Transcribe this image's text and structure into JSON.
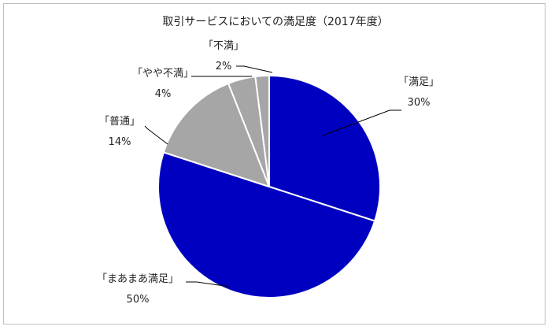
{
  "chart_data": {
    "type": "pie",
    "title": "取引サービスにおいての満足度（2017年度）",
    "slices": [
      {
        "label": "「満足」",
        "value": 30,
        "display": "30%",
        "color": "#0000c0"
      },
      {
        "label": "「まあまあ満足」",
        "value": 50,
        "display": "50%",
        "color": "#0000c0"
      },
      {
        "label": "「普通」",
        "value": 14,
        "display": "14%",
        "color": "#a6a6a6"
      },
      {
        "label": "「やや不満」",
        "value": 4,
        "display": "4%",
        "color": "#a6a6a6"
      },
      {
        "label": "「不満」",
        "value": 2,
        "display": "2%",
        "color": "#a6a6a6"
      }
    ],
    "start_angle_deg": 0,
    "direction": "clockwise",
    "slice_border_color": "#ffffff"
  }
}
